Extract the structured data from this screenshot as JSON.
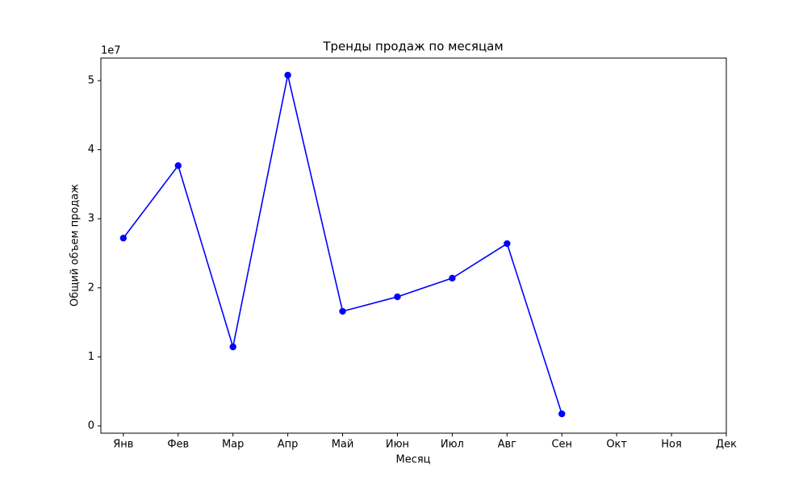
{
  "chart_data": {
    "type": "line",
    "title": "Тренды продаж по месяцам",
    "xlabel": "Месяц",
    "ylabel": "Общий объем продаж",
    "y_offset_label": "1e7",
    "categories": [
      "Янв",
      "Фев",
      "Мар",
      "Апр",
      "Май",
      "Июн",
      "Июл",
      "Авг",
      "Сен",
      "Окт",
      "Ноя",
      "Дек"
    ],
    "series": [
      {
        "name": "Общий объем продаж",
        "color": "#0000ff",
        "values": [
          27200000,
          37700000,
          11450000,
          50800000,
          16600000,
          18700000,
          21400000,
          26400000,
          1750000,
          null,
          null,
          null
        ]
      }
    ],
    "xlim": [
      -0.41,
      11
    ],
    "ylim": [
      -1050000,
      53270000
    ],
    "yticks": [
      {
        "value": 0,
        "label": "0"
      },
      {
        "value": 10000000,
        "label": "1"
      },
      {
        "value": 20000000,
        "label": "2"
      },
      {
        "value": 30000000,
        "label": "3"
      },
      {
        "value": 40000000,
        "label": "4"
      },
      {
        "value": 50000000,
        "label": "5"
      }
    ],
    "grid": false
  }
}
